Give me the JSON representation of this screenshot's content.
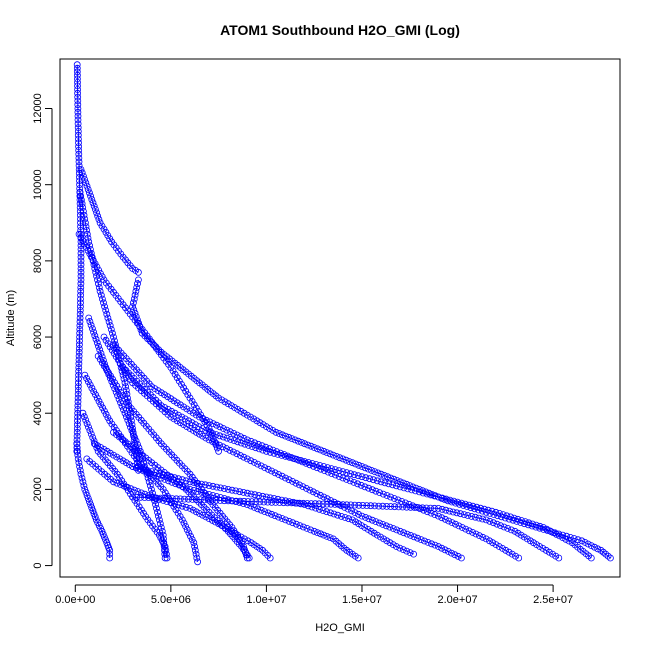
{
  "chart_data": {
    "type": "scatter",
    "title": "ATOM1 Southbound H2O_GMI (Log)",
    "xlabel": "H2O_GMI",
    "ylabel": "Altitude (m)",
    "xlim": [
      -800000,
      28500000
    ],
    "ylim": [
      -300,
      13300
    ],
    "x_ticks": [
      0,
      5000000,
      10000000,
      15000000,
      20000000,
      25000000
    ],
    "x_tick_labels": [
      "0.0e+00",
      "5.0e+06",
      "1.0e+07",
      "1.5e+07",
      "2.0e+07",
      "2.5e+07"
    ],
    "y_ticks": [
      0,
      2000,
      4000,
      6000,
      8000,
      10000,
      12000
    ],
    "y_tick_labels": [
      "0",
      "2000",
      "4000",
      "6000",
      "8000",
      "10000",
      "12000"
    ],
    "grid": false,
    "marker": "open-circle",
    "connected": true,
    "color": "#0000ff",
    "series": [
      {
        "x": [
          100000,
          120000,
          150000,
          200000,
          250000,
          300000,
          300000,
          250000,
          200000,
          150000,
          100000,
          80000
        ],
        "y": [
          13150,
          12500,
          11500,
          10500,
          9500,
          8500,
          7500,
          6500,
          5500,
          4500,
          3500,
          3000
        ]
      },
      {
        "x": [
          80000,
          150000,
          300000,
          500000,
          800000,
          1100000,
          1400000,
          1650000,
          1800000,
          1800000
        ],
        "y": [
          3200,
          2800,
          2400,
          2000,
          1600,
          1200,
          900,
          600,
          400,
          200
        ]
      },
      {
        "x": [
          300000,
          800000,
          1300000,
          1900000,
          2500000,
          3000000,
          3300000
        ],
        "y": [
          10400,
          9700,
          9000,
          8500,
          8100,
          7800,
          7700
        ]
      },
      {
        "x": [
          3300000,
          3000000,
          3500000,
          4500000,
          5500000,
          6500000,
          7500000,
          8500000,
          9500000,
          10500000,
          11500000,
          12500000,
          13500000,
          14500000,
          15500000,
          16500000,
          17500000,
          18500000,
          19500000,
          20500000,
          21500000,
          22500000,
          23500000,
          24500000,
          25500000,
          26500000,
          27500000,
          28000000
        ],
        "y": [
          7500,
          6800,
          6100,
          5600,
          5200,
          4800,
          4400,
          4100,
          3800,
          3500,
          3300,
          3100,
          2900,
          2700,
          2500,
          2300,
          2100,
          1900,
          1700,
          1550,
          1400,
          1250,
          1100,
          950,
          800,
          650,
          400,
          200
        ]
      },
      {
        "x": [
          200000,
          1500000,
          3500000,
          5000000,
          6000000,
          7000000,
          7500000
        ],
        "y": [
          8700,
          7500,
          6200,
          5200,
          4400,
          3600,
          3000
        ]
      },
      {
        "x": [
          400000,
          1200000,
          2200000,
          3000000,
          3800000,
          4400000,
          4700000,
          4800000
        ],
        "y": [
          4000,
          3000,
          2400,
          1800,
          1200,
          800,
          500,
          200
        ]
      },
      {
        "x": [
          500000,
          1800000,
          3200000,
          4600000,
          5600000,
          6200000,
          6400000
        ],
        "y": [
          5000,
          3800,
          2800,
          2000,
          1200,
          600,
          100
        ]
      },
      {
        "x": [
          1200000,
          2800000,
          4500000,
          6000000,
          7200000,
          8200000,
          8800000,
          9000000
        ],
        "y": [
          5500,
          4200,
          3200,
          2400,
          1600,
          1000,
          500,
          200
        ]
      },
      {
        "x": [
          1500000,
          3000000,
          5000000,
          7000000,
          9000000,
          11000000,
          13000000,
          15000000,
          17000000,
          19000000,
          20200000
        ],
        "y": [
          6000,
          4800,
          3900,
          3300,
          2800,
          2300,
          1800,
          1300,
          900,
          500,
          200
        ]
      },
      {
        "x": [
          2000000,
          4000000,
          6500000,
          9000000,
          11500000,
          14000000,
          16500000,
          19000000,
          21500000,
          23200000
        ],
        "y": [
          5800,
          4700,
          3900,
          3300,
          2800,
          2300,
          1800,
          1300,
          700,
          200
        ]
      },
      {
        "x": [
          2500000,
          4500000,
          7000000,
          10000000,
          13000000,
          16000000,
          19000000,
          22000000,
          24500000,
          26000000,
          27000000
        ],
        "y": [
          5200,
          4200,
          3500,
          3000,
          2600,
          2200,
          1800,
          1400,
          1000,
          600,
          200
        ]
      },
      {
        "x": [
          1000000,
          3000000,
          6000000,
          9000000,
          12000000,
          14500000,
          15800000,
          16800000,
          17700000
        ],
        "y": [
          3200,
          2600,
          2200,
          1900,
          1600,
          1200,
          800,
          500,
          300
        ]
      },
      {
        "x": [
          600000,
          2000000,
          4000000,
          6000000,
          7500000,
          8500000,
          9200000,
          9800000,
          10200000
        ],
        "y": [
          2800,
          2200,
          1800,
          1500,
          1100,
          800,
          600,
          400,
          200
        ]
      },
      {
        "x": [
          3000000,
          6000000,
          9000000,
          11000000,
          12500000,
          13500000,
          14200000,
          14800000
        ],
        "y": [
          2600,
          2000,
          1600,
          1200,
          900,
          700,
          400,
          200
        ]
      },
      {
        "x": [
          3000000,
          8000000,
          14000000,
          19000000,
          21500000,
          23000000,
          24300000,
          25300000
        ],
        "y": [
          1800,
          1700,
          1600,
          1500,
          1200,
          900,
          500,
          200
        ]
      },
      {
        "x": [
          2000000,
          4000000,
          5800000,
          7000000,
          8000000,
          8700000,
          9100000
        ],
        "y": [
          3500,
          2700,
          2000,
          1400,
          900,
          500,
          200
        ]
      },
      {
        "x": [
          700000,
          1600000,
          2600000,
          3400000,
          4100000,
          4600000,
          4700000
        ],
        "y": [
          6500,
          5200,
          4000,
          3000,
          1800,
          800,
          200
        ]
      },
      {
        "x": [
          250000,
          700000,
          1300000,
          2000000,
          2600000,
          3000000,
          3300000
        ],
        "y": [
          9800,
          8500,
          7200,
          6000,
          4800,
          3600,
          2500
        ]
      }
    ]
  }
}
